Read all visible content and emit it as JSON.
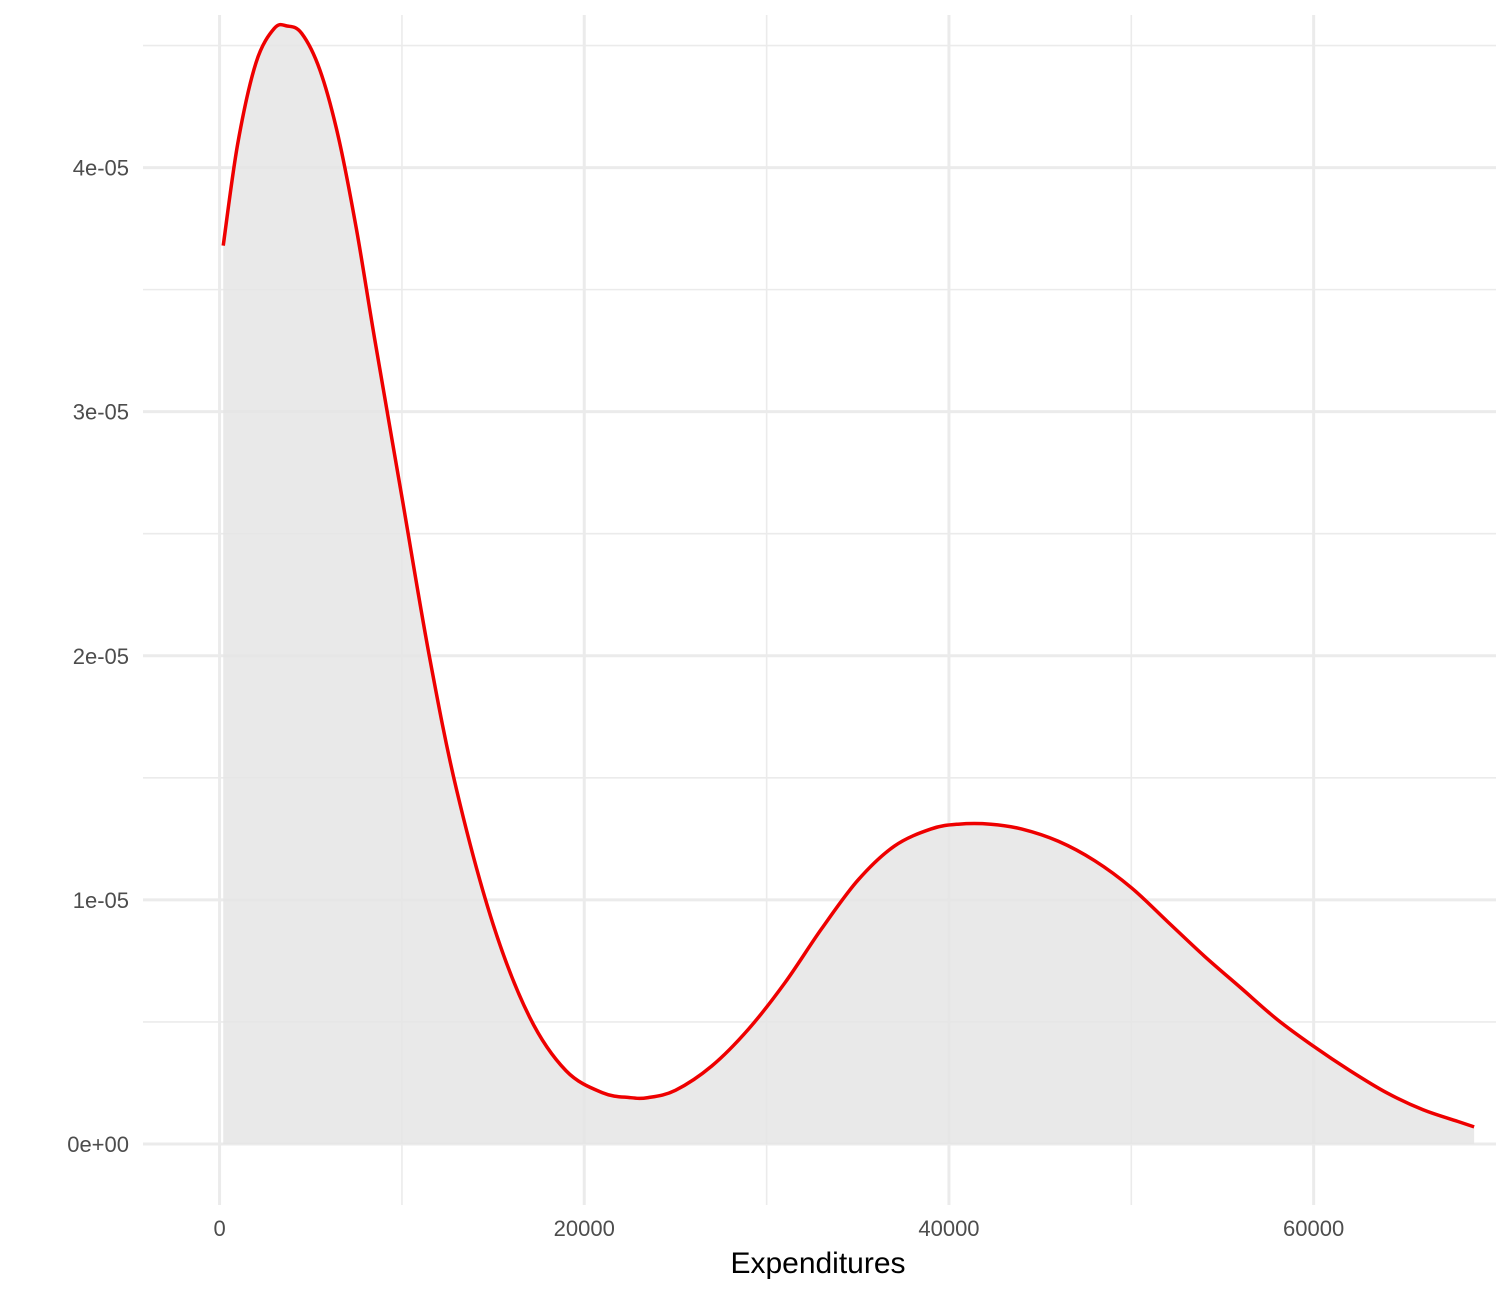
{
  "chart_data": {
    "type": "area",
    "title": "",
    "xlabel": "Expenditures",
    "ylabel": "",
    "xlim": [
      -4200,
      70000
    ],
    "ylim": [
      -2.5e-06,
      4.625e-05
    ],
    "x_ticks": [
      0,
      20000,
      40000,
      60000
    ],
    "x_tick_labels": [
      "0",
      "20000",
      "40000",
      "60000"
    ],
    "y_ticks": [
      0,
      1e-05,
      2e-05,
      3e-05,
      4e-05
    ],
    "y_tick_labels": [
      "0e+00",
      "1e-05",
      "2e-05",
      "3e-05",
      "4e-05"
    ],
    "grid": true,
    "legend": "none",
    "line_color": "#ee0000",
    "fill_color": "#e5e5e5",
    "series": [
      {
        "x": [
          200,
          1000,
          2000,
          3000,
          3700,
          4500,
          5500,
          6500,
          7500,
          8500,
          10000,
          11500,
          13000,
          15000,
          17000,
          19000,
          21000,
          22500,
          23500,
          25000,
          27000,
          29000,
          31000,
          33000,
          35000,
          37000,
          39000,
          40500,
          42300,
          44000,
          46000,
          48000,
          50000,
          52000,
          54000,
          56000,
          58000,
          60000,
          62000,
          64000,
          66000,
          68000,
          68800
        ],
        "values": [
          3.68e-05,
          4.1e-05,
          4.43e-05,
          4.57e-05,
          4.58e-05,
          4.55e-05,
          4.4e-05,
          4.13e-05,
          3.75e-05,
          3.3e-05,
          2.65e-05,
          2e-05,
          1.45e-05,
          9e-06,
          5.2e-06,
          3e-06,
          2.1e-06,
          1.9e-06,
          1.9e-06,
          2.2e-06,
          3.2e-06,
          4.7e-06,
          6.6e-06,
          8.8e-06,
          1.08e-05,
          1.22e-05,
          1.29e-05,
          1.31e-05,
          1.31e-05,
          1.29e-05,
          1.24e-05,
          1.16e-05,
          1.05e-05,
          9.1e-06,
          7.7e-06,
          6.4e-06,
          5.1e-06,
          4e-06,
          3e-06,
          2.1e-06,
          1.4e-06,
          9e-07,
          7e-07
        ]
      }
    ]
  }
}
